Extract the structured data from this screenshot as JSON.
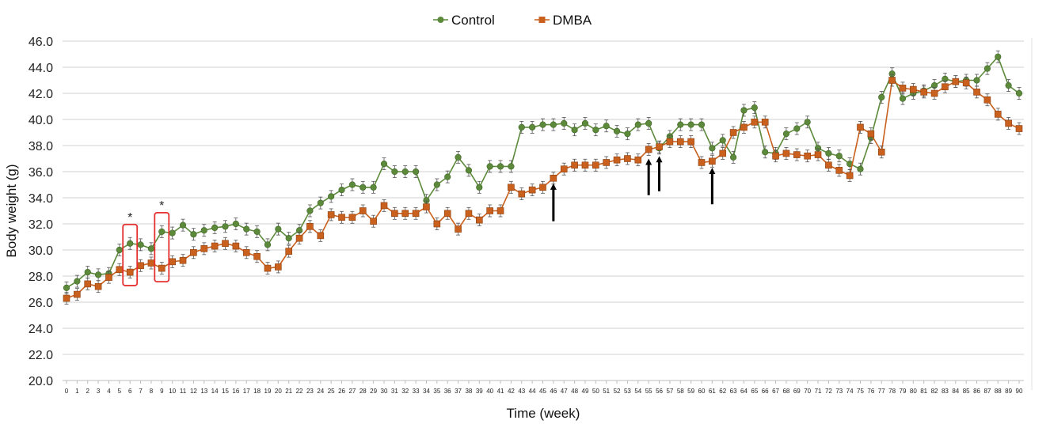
{
  "chart_data": {
    "type": "line",
    "title": "",
    "xlabel": "Time (week)",
    "ylabel": "Body weight (g)",
    "ylim": [
      20,
      46
    ],
    "yticks": [
      "20.0",
      "22.0",
      "24.0",
      "26.0",
      "28.0",
      "30.0",
      "32.0",
      "34.0",
      "36.0",
      "38.0",
      "40.0",
      "42.0",
      "44.0",
      "46.0"
    ],
    "ytick_values": [
      20,
      22,
      24,
      26,
      28,
      30,
      32,
      34,
      36,
      38,
      40,
      42,
      44,
      46
    ],
    "x": [
      0,
      1,
      2,
      3,
      4,
      5,
      6,
      7,
      8,
      9,
      10,
      11,
      12,
      13,
      14,
      15,
      16,
      17,
      18,
      19,
      20,
      21,
      22,
      23,
      24,
      25,
      26,
      27,
      28,
      29,
      30,
      31,
      32,
      33,
      34,
      35,
      36,
      37,
      38,
      39,
      40,
      41,
      42,
      43,
      44,
      45,
      46,
      47,
      48,
      49,
      50,
      51,
      52,
      53,
      54,
      55,
      56,
      57,
      58,
      59,
      60,
      61,
      62,
      63,
      64,
      65,
      66,
      67,
      68,
      69,
      70,
      71,
      72,
      73,
      74,
      75,
      76,
      77,
      78,
      79,
      80,
      81,
      82,
      83,
      84,
      85,
      86,
      87,
      88,
      89,
      90
    ],
    "xtick_labels": [
      "0",
      "1",
      "2",
      "3",
      "4",
      "5",
      "6",
      "7",
      "8",
      "9",
      "10",
      "11",
      "12",
      "13",
      "14",
      "15",
      "16",
      "17",
      "18",
      "19",
      "20",
      "21",
      "22",
      "23",
      "24",
      "25",
      "26",
      "27",
      "28",
      "29",
      "30",
      "31",
      "32",
      "33",
      "34",
      "35",
      "36",
      "37",
      "38",
      "39",
      "40",
      "41",
      "42",
      "43",
      "44",
      "45",
      "46",
      "47",
      "48",
      "49",
      "50",
      "51",
      "52",
      "53",
      "54",
      "55",
      "56",
      "57",
      "58",
      "59",
      "60",
      "61",
      "62",
      "63",
      "64",
      "65",
      "66",
      "67",
      "68",
      "69",
      "70",
      "71",
      "72",
      "73",
      "74",
      "75",
      "76",
      "77",
      "78",
      "79",
      "80",
      "81",
      "82",
      "83",
      "84",
      "85",
      "86",
      "87",
      "88",
      "89",
      "90"
    ],
    "grid": true,
    "legend_position": "top-center",
    "series": [
      {
        "name": "Control",
        "color": "#5c8a3a",
        "marker": "circle",
        "values": [
          27.1,
          27.6,
          28.3,
          28.1,
          28.2,
          30.0,
          30.5,
          30.4,
          30.1,
          31.4,
          31.3,
          31.9,
          31.2,
          31.5,
          31.7,
          31.8,
          32.0,
          31.6,
          31.4,
          30.4,
          31.6,
          30.9,
          31.5,
          33.0,
          33.6,
          34.1,
          34.6,
          35.0,
          34.8,
          34.8,
          36.6,
          36.0,
          36.0,
          36.0,
          33.8,
          35.0,
          35.6,
          37.1,
          36.1,
          34.8,
          36.4,
          36.4,
          36.4,
          39.4,
          39.4,
          39.6,
          39.6,
          39.7,
          39.2,
          39.7,
          39.2,
          39.5,
          39.1,
          38.9,
          39.6,
          39.7,
          37.8,
          38.7,
          39.6,
          39.6,
          39.6,
          37.8,
          38.4,
          37.1,
          40.7,
          40.9,
          37.5,
          37.4,
          38.9,
          39.3,
          39.8,
          37.8,
          37.4,
          37.2,
          36.6,
          36.2,
          38.6,
          41.7,
          43.5,
          41.6,
          42.0,
          42.2,
          42.6,
          43.1,
          42.9,
          43.0,
          43.0,
          43.9,
          44.8,
          42.6,
          42.0
        ]
      },
      {
        "name": "DMBA",
        "color": "#c9601d",
        "marker": "square",
        "values": [
          26.3,
          26.6,
          27.4,
          27.2,
          27.9,
          28.5,
          28.3,
          28.8,
          29.0,
          28.6,
          29.1,
          29.2,
          29.8,
          30.1,
          30.3,
          30.5,
          30.3,
          29.8,
          29.5,
          28.6,
          28.7,
          29.9,
          30.9,
          31.8,
          31.1,
          32.7,
          32.5,
          32.5,
          33.0,
          32.2,
          33.4,
          32.8,
          32.8,
          32.8,
          33.3,
          32.0,
          32.8,
          31.6,
          32.8,
          32.3,
          33.0,
          33.0,
          34.8,
          34.3,
          34.6,
          34.8,
          35.5,
          36.2,
          36.5,
          36.5,
          36.5,
          36.7,
          36.9,
          37.0,
          36.9,
          37.7,
          37.9,
          38.3,
          38.3,
          38.3,
          36.7,
          36.8,
          37.4,
          39.0,
          39.4,
          39.8,
          39.8,
          37.2,
          37.4,
          37.3,
          37.2,
          37.3,
          36.5,
          36.1,
          35.7,
          39.4,
          38.9,
          37.5,
          43.0,
          42.4,
          42.3,
          42.1,
          42.0,
          42.5,
          42.9,
          42.8,
          42.1,
          41.5,
          40.4,
          39.7,
          39.3
        ]
      }
    ],
    "annotations": {
      "significance": [
        {
          "week": 6,
          "label": "*"
        },
        {
          "week": 9,
          "label": "*"
        }
      ],
      "arrows": [
        {
          "week": 46,
          "from": 32.2,
          "to": 35.1
        },
        {
          "week": 55,
          "from": 34.2,
          "to": 37.0
        },
        {
          "week": 56,
          "from": 34.5,
          "to": 37.2
        },
        {
          "week": 61,
          "from": 33.5,
          "to": 36.3
        }
      ]
    }
  }
}
